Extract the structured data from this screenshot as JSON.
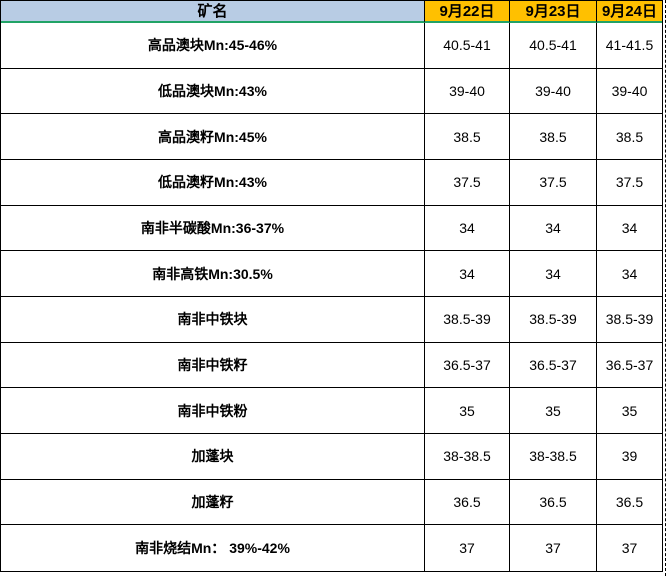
{
  "colors": {
    "header_name_bg": "#b8cce4",
    "header_date_bg": "#ffc000",
    "header_underline": "#21a366",
    "border": "#000000"
  },
  "table": {
    "header": {
      "mine_name": "矿名",
      "dates": [
        "9月22日",
        "9月23日",
        "9月24日"
      ]
    },
    "rows": [
      {
        "label": "高品澳块Mn:45-46%",
        "values": [
          "40.5-41",
          "40.5-41",
          "41-41.5"
        ]
      },
      {
        "label": "低品澳块Mn:43%",
        "values": [
          "39-40",
          "39-40",
          "39-40"
        ]
      },
      {
        "label": "高品澳籽Mn:45%",
        "values": [
          "38.5",
          "38.5",
          "38.5"
        ]
      },
      {
        "label": "低品澳籽Mn:43%",
        "values": [
          "37.5",
          "37.5",
          "37.5"
        ]
      },
      {
        "label": "南非半碳酸Mn:36-37%",
        "values": [
          "34",
          "34",
          "34"
        ]
      },
      {
        "label": "南非高铁Mn:30.5%",
        "values": [
          "34",
          "34",
          "34"
        ]
      },
      {
        "label": "南非中铁块",
        "values": [
          "38.5-39",
          "38.5-39",
          "38.5-39"
        ]
      },
      {
        "label": "南非中铁籽",
        "values": [
          "36.5-37",
          "36.5-37",
          "36.5-37"
        ]
      },
      {
        "label": "南非中铁粉",
        "values": [
          "35",
          "35",
          "35"
        ]
      },
      {
        "label": "加蓬块",
        "values": [
          "38-38.5",
          "38-38.5",
          "39"
        ]
      },
      {
        "label": "加蓬籽",
        "values": [
          "36.5",
          "36.5",
          "36.5"
        ]
      },
      {
        "label": "南非烧结Mn： 39%-42%",
        "values": [
          "37",
          "37",
          "37"
        ]
      }
    ]
  },
  "chart_data": {
    "type": "table",
    "title": "",
    "columns": [
      "矿名",
      "9月22日",
      "9月23日",
      "9月24日"
    ],
    "rows": [
      [
        "高品澳块Mn:45-46%",
        "40.5-41",
        "40.5-41",
        "41-41.5"
      ],
      [
        "低品澳块Mn:43%",
        "39-40",
        "39-40",
        "39-40"
      ],
      [
        "高品澳籽Mn:45%",
        "38.5",
        "38.5",
        "38.5"
      ],
      [
        "低品澳籽Mn:43%",
        "37.5",
        "37.5",
        "37.5"
      ],
      [
        "南非半碳酸Mn:36-37%",
        "34",
        "34",
        "34"
      ],
      [
        "南非高铁Mn:30.5%",
        "34",
        "34",
        "34"
      ],
      [
        "南非中铁块",
        "38.5-39",
        "38.5-39",
        "38.5-39"
      ],
      [
        "南非中铁籽",
        "36.5-37",
        "36.5-37",
        "36.5-37"
      ],
      [
        "南非中铁粉",
        "35",
        "35",
        "35"
      ],
      [
        "加蓬块",
        "38-38.5",
        "38-38.5",
        "39"
      ],
      [
        "加蓬籽",
        "36.5",
        "36.5",
        "36.5"
      ],
      [
        "南非烧结Mn： 39%-42%",
        "37",
        "37",
        "37"
      ]
    ]
  }
}
